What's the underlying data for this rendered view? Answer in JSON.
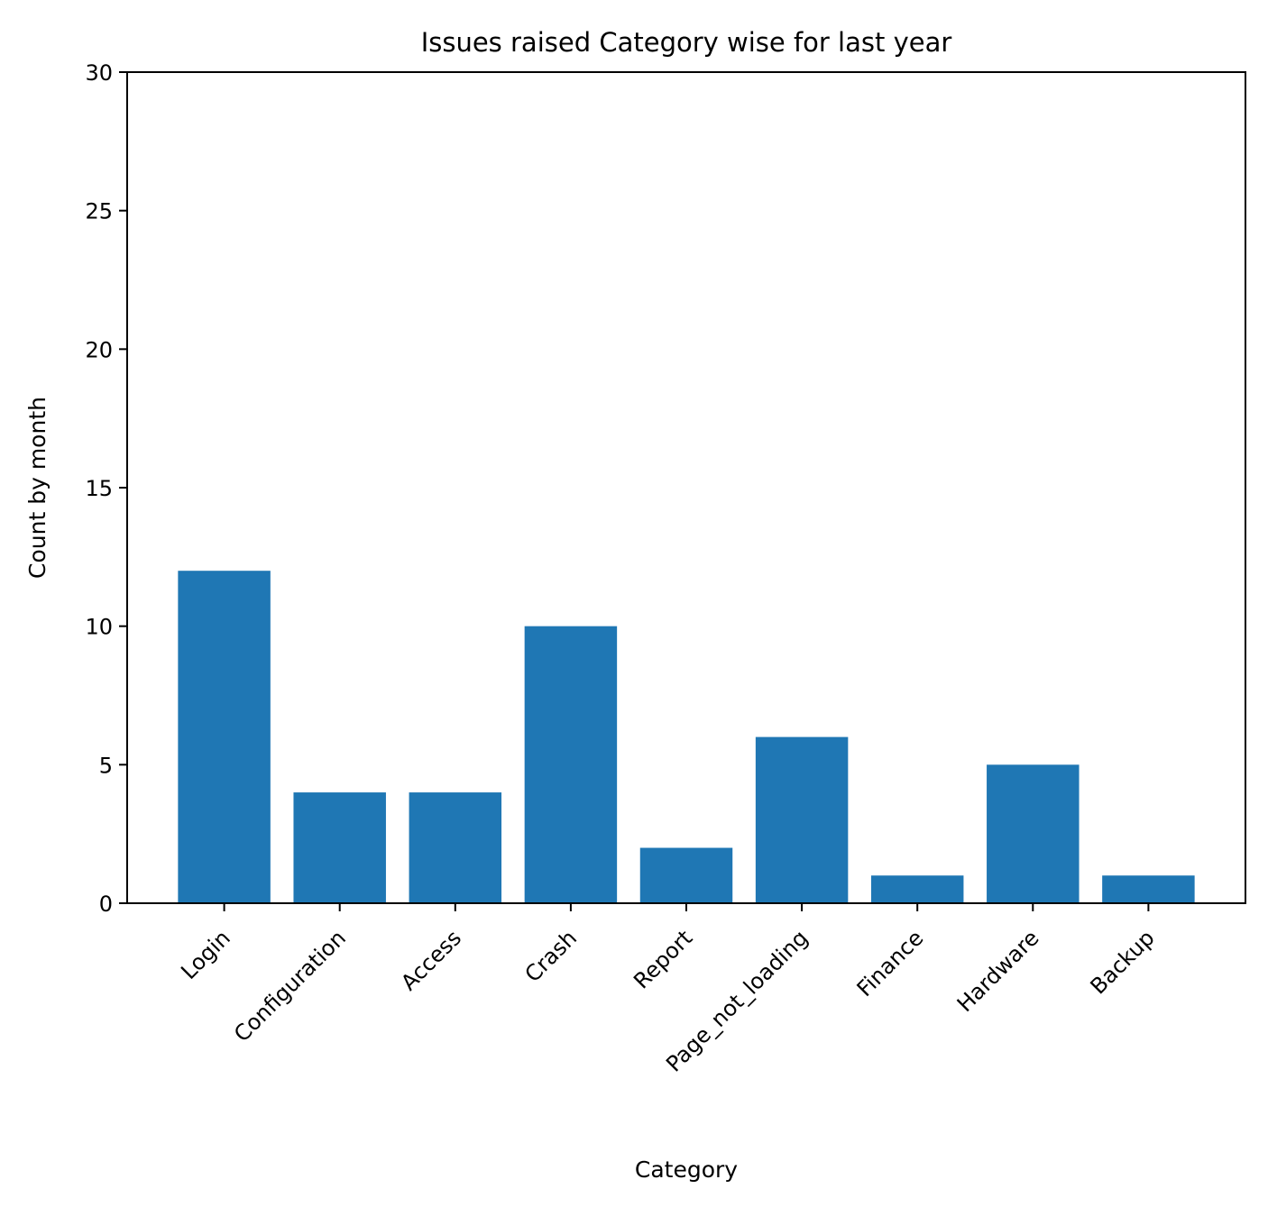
{
  "chart_data": {
    "type": "bar",
    "title": "Issues raised Category wise for last year",
    "xlabel": "Category",
    "ylabel": "Count by month",
    "categories": [
      "Login",
      "Configuration",
      "Access",
      "Crash",
      "Report",
      "Page_not_loading",
      "Finance",
      "Hardware",
      "Backup"
    ],
    "values": [
      12,
      4,
      4,
      10,
      2,
      6,
      1,
      5,
      1
    ],
    "ylim": [
      0,
      30
    ],
    "yticks": [
      "0",
      "5",
      "10",
      "15",
      "20",
      "25",
      "30"
    ],
    "bar_color": "#1f77b4",
    "grid": false,
    "legend": false
  }
}
